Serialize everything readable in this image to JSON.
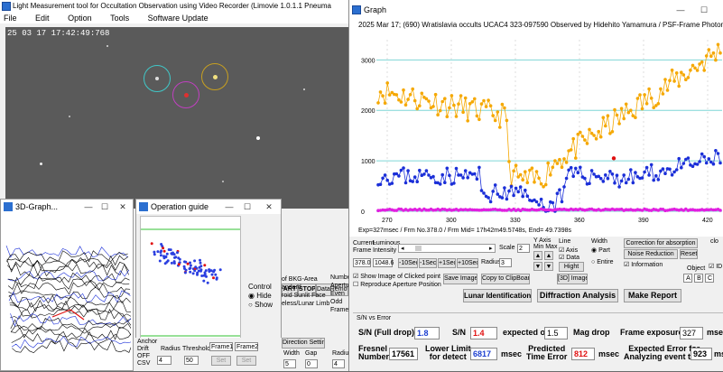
{
  "main_window": {
    "title": "Light Measurement tool for Occultation Observation using Video Recorder (Limovie 1.0.1.1 Pneuma",
    "menu": [
      "File",
      "Edit",
      "Option",
      "Tools",
      "Software Update"
    ],
    "timestamp": "25 03 17 17:42:49:768"
  },
  "win3d": {
    "title": "3D-Graph...",
    "minimize": "—",
    "maximize": "☐",
    "close": "✕"
  },
  "op_guide": {
    "title": "Operation guide",
    "minimize": "—",
    "maximize": "☐",
    "close": "✕",
    "control_label": "Control",
    "hide_label": "Hide",
    "show_label": "Show"
  },
  "controls": {
    "start_label": "ART",
    "stop_label": "STOP",
    "dataremove_label": "DataRemov",
    "bkg_lines": [
      "of BKG-Area",
      "andard",
      "roid Sunlit Face",
      "eless/Lunar Limb"
    ],
    "direction_setting": "Direction Setting",
    "width_label": "Width",
    "gap_label": "Gap",
    "width_val": "5",
    "gap_val": "0",
    "numb_lines": [
      "Numbe",
      "Apertu",
      "Even",
      "Odd",
      "Frame"
    ],
    "radiu_label": "Radiu",
    "radiu_val": "4",
    "anchor_label": "Anchor",
    "drift_label": "Drift",
    "off_label": "OFF",
    "csv_label": "CSV",
    "radius_label": "Radius",
    "threshold_label": "Threshold",
    "radius_val": "4",
    "threshold_val": "50",
    "frame1": "Frame1",
    "frame2": "Frame2",
    "set1": "Set",
    "set2": "Set"
  },
  "graph_window": {
    "title": "Graph",
    "minimize": "—",
    "maximize": "☐",
    "caption": "2025 Mar 17; (690) Wratislavia occults UCAC4 323-097590 Observed by Hidehito Yamamura / PSF-Frame Photometry /",
    "exp_line": "Exp=327msec / Frm No.378.0 / Frm Mid= 17h42m49.5748s,  End= 49.7398s",
    "y_ticks": [
      "3000",
      "2000",
      "1000",
      "0"
    ],
    "x_ticks": [
      "270",
      "300",
      "330",
      "360",
      "390",
      "420"
    ]
  },
  "graph_controls": {
    "current_frame_label": "Current-\nFrame",
    "luminous_label": "Luminous\nIntensity",
    "current_frame": "378.0",
    "luminous": "1048.6",
    "m10": "-10Sec",
    "m1": "-1Sec",
    "p1": "+1Sec",
    "p10": "+10Sec",
    "scale_label": "Scale",
    "scale_val": "2",
    "radius_label": "Radius",
    "radius_val": "3",
    "yaxis_label": "Y Axis\nMin Max",
    "line_label": "Line",
    "axis_label": "Axis",
    "data_label": "Data",
    "hight_label": "Hight",
    "width_label": "Width",
    "part_label": "Part",
    "entire_label": "Entire",
    "correction_label": "Correction for absorption",
    "noise_label": "Noise Reduction",
    "reset_label": "Reset",
    "information_label": "Information",
    "object_label": "Object",
    "obj_a": "A",
    "obj_b": "B",
    "obj_c": "C",
    "show_image_label": "Show Image of Clicked point",
    "reproduce_label": "Reproduce Aperture Position",
    "save_image": "Save Image",
    "copy_clip": "Copy to ClipBoard",
    "d3_image": "[3D] Image",
    "lunar_id": "Lunar Identification",
    "diffraction": "Diffraction Analysis",
    "make_report": "Make Report",
    "clo_label": "clo",
    "id_label": "ID"
  },
  "sn_panel": {
    "header": "S/N vs Error",
    "sn_full_label": "S/N (Full drop)",
    "sn_full_val": "1.8",
    "sn_label": "S/N",
    "sn_val": "1.4",
    "expected_label": "expected on",
    "expected_val": "1.5",
    "mag_drop": "Mag drop",
    "frame_exposure_label": "Frame exposure",
    "frame_exposure_val": "327",
    "msec1": "msec",
    "fresnel_label": "Fresnel\nNumber",
    "fresnel_val": "17561",
    "lower_limit_label": "Lower Limit\nfor detect",
    "lower_limit_val": "6817",
    "msec2": "msec",
    "predicted_label": "Predicted\nTime Error",
    "predicted_val": "812",
    "msec3": "msec",
    "expected_error_label": "Expected Error for\nAnalyzing event time",
    "expected_error_val": "923",
    "msec4": "mse"
  },
  "colors": {
    "orange": "#f5a800",
    "blue": "#1b2fd8",
    "magenta": "#e020e0",
    "cyan": "#7fd6d6",
    "red": "#e01010"
  }
}
